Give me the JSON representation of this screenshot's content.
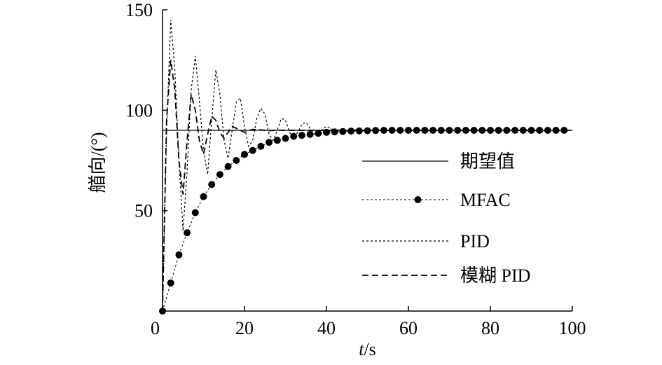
{
  "chart_data": {
    "type": "line",
    "title": "",
    "xlabel_italic": "t",
    "xlabel_unit": "/s",
    "ylabel": "艏向/(°)",
    "xlim": [
      0,
      100
    ],
    "ylim": [
      0,
      150
    ],
    "x_ticks": [
      0,
      20,
      40,
      60,
      80,
      100
    ],
    "y_ticks": [
      50,
      100,
      150
    ],
    "x_tick_labels": [
      "0",
      "20",
      "40",
      "60",
      "80",
      "100"
    ],
    "y_tick_labels": [
      "50",
      "100",
      "150"
    ],
    "grid": false,
    "legend_position": "center-right",
    "series": [
      {
        "name": "期望值",
        "style": "solid",
        "x": [
          0,
          100
        ],
        "y": [
          90,
          90
        ]
      },
      {
        "name": "MFAC",
        "style": "dotted-markers",
        "x": [
          0,
          2,
          4,
          6,
          8,
          10,
          12,
          14,
          16,
          18,
          20,
          22,
          24,
          26,
          28,
          30,
          32,
          34,
          36,
          38,
          40,
          42,
          44,
          46,
          48,
          50,
          52,
          54,
          56,
          58,
          60,
          62,
          64,
          66,
          68,
          70,
          72,
          74,
          76,
          78,
          80,
          82,
          84,
          86,
          88,
          90,
          92,
          94,
          96,
          98
        ],
        "y": [
          0,
          14,
          28,
          39,
          49,
          57,
          63,
          68,
          72,
          75,
          78,
          80,
          82,
          84,
          85,
          86,
          87,
          87.5,
          88,
          88.5,
          89,
          89.2,
          89.4,
          89.6,
          89.7,
          89.8,
          89.9,
          90,
          90,
          90,
          90,
          90,
          90,
          90,
          90,
          90,
          90,
          90,
          90,
          90,
          90,
          90,
          90,
          90,
          90,
          90,
          90,
          90,
          90,
          90
        ]
      },
      {
        "name": "PID",
        "style": "dotted",
        "x": [
          0,
          1,
          2,
          3,
          4,
          5,
          6,
          7,
          8,
          9,
          10,
          11,
          12,
          13,
          14,
          15,
          16,
          17,
          18,
          19,
          20,
          21,
          22,
          23,
          24,
          25,
          26,
          27,
          28,
          29,
          30,
          31,
          32,
          33,
          34,
          35,
          36,
          37,
          38,
          40,
          42,
          44,
          46,
          48,
          50,
          55,
          60,
          70,
          80,
          90,
          100
        ],
        "y": [
          0,
          90,
          145,
          120,
          75,
          40,
          70,
          110,
          127,
          105,
          80,
          68,
          95,
          120,
          108,
          85,
          76,
          90,
          104,
          106,
          92,
          82,
          85,
          96,
          101,
          98,
          88,
          85,
          90,
          96,
          95,
          89,
          86,
          89,
          93,
          94,
          91,
          88,
          89,
          92,
          90,
          89,
          90.5,
          90.3,
          89.8,
          90,
          90,
          90,
          90,
          90,
          90
        ]
      },
      {
        "name": "模糊 PID",
        "style": "dashed",
        "x": [
          0,
          1,
          2,
          3,
          4,
          5,
          6,
          7,
          8,
          9,
          10,
          11,
          12,
          13,
          14,
          15,
          16,
          17,
          18,
          20,
          22,
          24,
          26,
          28,
          30,
          35,
          40,
          50,
          60,
          70,
          80,
          90,
          100
        ],
        "y": [
          0,
          95,
          125,
          110,
          75,
          58,
          85,
          108,
          100,
          85,
          78,
          88,
          97,
          95,
          89,
          86,
          89,
          92,
          91,
          89,
          90.5,
          90.2,
          89.8,
          90.1,
          90,
          90,
          90,
          90,
          90,
          90,
          90,
          90,
          90
        ]
      }
    ]
  }
}
